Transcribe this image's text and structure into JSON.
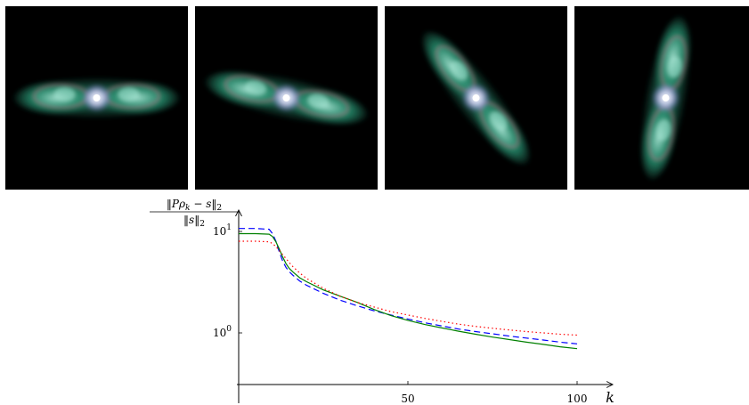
{
  "figure": {
    "panels": [
      {
        "name": "nebula-view-1",
        "rotation_deg": 0
      },
      {
        "name": "nebula-view-2",
        "rotation_deg": 12
      },
      {
        "name": "nebula-view-3",
        "rotation_deg": 52
      },
      {
        "name": "nebula-view-4",
        "rotation_deg": 100
      }
    ],
    "colors": {
      "background": "#000000",
      "lobe_outer": "#2a9d7a",
      "lobe_inner": "#a8e8d6",
      "core": "#ffffff",
      "rim": "#c25a8a"
    }
  },
  "chart_data": {
    "type": "line",
    "title": "",
    "xlabel": "k",
    "ylabel": "‖Pρk − s‖2 / ‖s‖2",
    "ylabel_parts": {
      "num_a": "‖",
      "num_P": "Pρ",
      "num_k": "k",
      "num_b": " − s‖",
      "num_2": "2",
      "den_a": "‖s‖",
      "den_2": "2"
    },
    "xlim": [
      0,
      112
    ],
    "ylim": [
      0.33,
      14
    ],
    "yscale": "log",
    "xticks": [
      {
        "value": 50,
        "label": "50"
      },
      {
        "value": 100,
        "label": "100"
      }
    ],
    "yticks": [
      {
        "value": 10,
        "base": "10",
        "exp": "1"
      },
      {
        "value": 1,
        "base": "10",
        "exp": "0"
      }
    ],
    "grid": false,
    "legend": "none",
    "series": [
      {
        "color": "#0000ff",
        "style": "dashed",
        "x": [
          0,
          5,
          9,
          10,
          11,
          12,
          13,
          14,
          15,
          16,
          18,
          20,
          25,
          30,
          35,
          40,
          45,
          50,
          55,
          60,
          65,
          70,
          75,
          80,
          85,
          90,
          95,
          100
        ],
        "y": [
          10.7,
          10.7,
          10.5,
          9.5,
          8.0,
          6.3,
          5.1,
          4.4,
          4.0,
          3.7,
          3.25,
          2.95,
          2.45,
          2.1,
          1.85,
          1.65,
          1.5,
          1.37,
          1.26,
          1.17,
          1.09,
          1.03,
          0.98,
          0.93,
          0.89,
          0.85,
          0.81,
          0.78
        ]
      },
      {
        "color": "#008000",
        "style": "solid",
        "x": [
          0,
          5,
          9,
          10,
          11,
          12,
          13,
          14,
          15,
          16,
          18,
          20,
          25,
          30,
          35,
          40,
          45,
          50,
          55,
          60,
          65,
          70,
          75,
          80,
          85,
          90,
          95,
          100
        ],
        "y": [
          9.5,
          9.5,
          9.4,
          8.9,
          7.9,
          6.7,
          5.6,
          4.8,
          4.3,
          4.0,
          3.5,
          3.2,
          2.65,
          2.3,
          2.0,
          1.7,
          1.48,
          1.33,
          1.21,
          1.12,
          1.04,
          0.97,
          0.91,
          0.86,
          0.81,
          0.77,
          0.73,
          0.7
        ]
      },
      {
        "color": "#ff0000",
        "style": "dotted",
        "x": [
          0,
          5,
          9,
          10,
          11,
          12,
          13,
          14,
          15,
          16,
          18,
          20,
          25,
          30,
          35,
          40,
          45,
          50,
          55,
          60,
          65,
          70,
          75,
          80,
          85,
          90,
          95,
          100
        ],
        "y": [
          8.0,
          8.0,
          7.9,
          7.6,
          7.1,
          6.5,
          5.9,
          5.4,
          4.9,
          4.5,
          3.9,
          3.45,
          2.75,
          2.3,
          2.0,
          1.8,
          1.62,
          1.5,
          1.39,
          1.3,
          1.22,
          1.16,
          1.11,
          1.07,
          1.03,
          1.0,
          0.97,
          0.95
        ]
      }
    ]
  }
}
